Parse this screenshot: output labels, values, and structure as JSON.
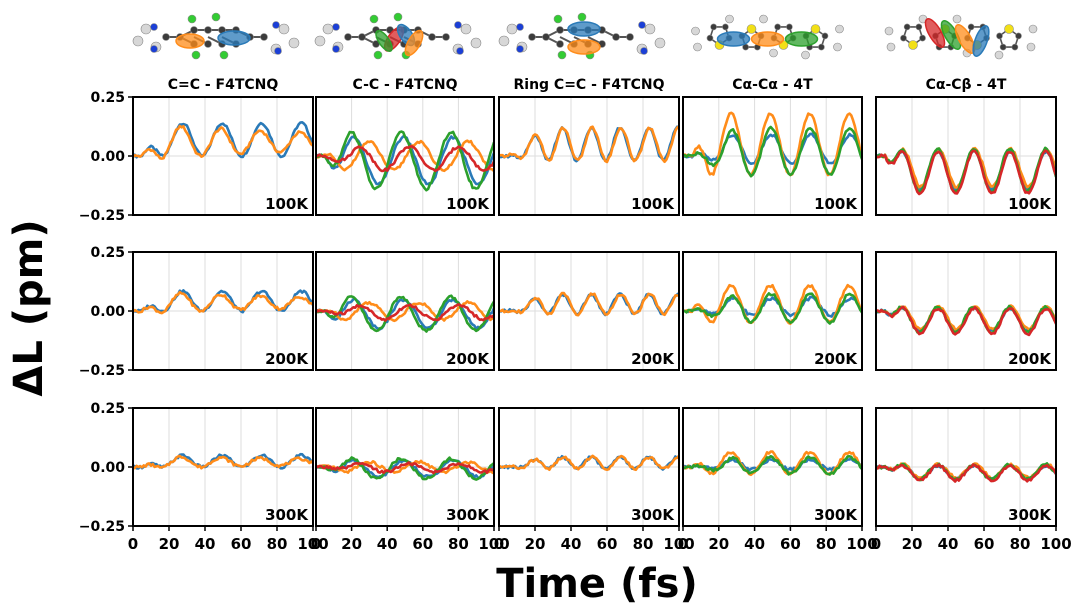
{
  "colors": {
    "blue": "#2a7ab8",
    "orange": "#ff8c1a",
    "green": "#2ca02c",
    "red": "#d62728",
    "atom_carbon": "#3c3c3c",
    "atom_hydrogen": "#d7d7d7",
    "atom_nitrogen": "#1b3fd6",
    "atom_fluorine": "#33cc33",
    "atom_sulfur": "#f2e017"
  },
  "figure": {
    "ylabel": "ΔL (pm)",
    "xlabel": "Time (fs)"
  },
  "chart_data": {
    "type": "line",
    "layout": "grid 3 rows x 5 columns, shared axes",
    "columns": [
      {
        "title": "C=C - F4TCNQ",
        "molecule": "F4TCNQ",
        "series_colors": [
          "blue",
          "orange"
        ]
      },
      {
        "title": "C-C - F4TCNQ",
        "molecule": "F4TCNQ",
        "series_colors": [
          "blue",
          "orange",
          "green",
          "red"
        ]
      },
      {
        "title": "Ring C=C - F4TCNQ",
        "molecule": "F4TCNQ",
        "series_colors": [
          "blue",
          "orange"
        ]
      },
      {
        "title": "Cα-Cα - 4T",
        "molecule": "4T",
        "series_colors": [
          "blue",
          "orange",
          "green"
        ]
      },
      {
        "title": "Cα-Cβ - 4T",
        "molecule": "4T",
        "series_colors": [
          "blue",
          "orange",
          "green",
          "red"
        ]
      }
    ],
    "rows": [
      {
        "label": "100K",
        "amplitude_scale": 1.0
      },
      {
        "label": "200K",
        "amplitude_scale": 0.6
      },
      {
        "label": "300K",
        "amplitude_scale": 0.35
      }
    ],
    "x_ticks": [
      "0",
      "20",
      "40",
      "60",
      "80",
      "100"
    ],
    "x_tick_values": [
      0,
      20,
      40,
      60,
      80,
      100
    ],
    "xlim": [
      0,
      100
    ],
    "y_ticks": [
      "−0.25",
      "0.00",
      "0.25"
    ],
    "y_tick_values": [
      -0.25,
      0.0,
      0.25
    ],
    "ylim": [
      -0.25,
      0.25
    ],
    "xlabel": "Time (fs)",
    "ylabel": "ΔL (pm)",
    "series_params_100K": [
      {
        "col": 0,
        "color": "blue",
        "offset": 0.07,
        "amp": 0.07,
        "period": 22,
        "phase": 0.0,
        "rise": 12,
        "damp": 0.0
      },
      {
        "col": 0,
        "color": "orange",
        "offset": 0.06,
        "amp": 0.08,
        "period": 22,
        "phase": 0.2,
        "rise": 12,
        "damp": 0.015
      },
      {
        "col": 1,
        "color": "blue",
        "offset": -0.02,
        "amp": 0.1,
        "period": 28,
        "phase": 3.1,
        "rise": 10,
        "damp": 0.0
      },
      {
        "col": 1,
        "color": "orange",
        "offset": 0.0,
        "amp": 0.06,
        "period": 28,
        "phase": 1.2,
        "rise": 10,
        "damp": 0.0
      },
      {
        "col": 1,
        "color": "green",
        "offset": -0.02,
        "amp": 0.12,
        "period": 28,
        "phase": 3.4,
        "rise": 12,
        "damp": 0.0
      },
      {
        "col": 1,
        "color": "red",
        "offset": -0.01,
        "amp": 0.05,
        "period": 28,
        "phase": 2.4,
        "rise": 20,
        "damp": 0.0
      },
      {
        "col": 2,
        "color": "blue",
        "offset": 0.05,
        "amp": 0.07,
        "period": 16,
        "phase": 0.3,
        "rise": 20,
        "damp": 0.0
      },
      {
        "col": 2,
        "color": "orange",
        "offset": 0.05,
        "amp": 0.07,
        "period": 16,
        "phase": 0.1,
        "rise": 20,
        "damp": 0.0
      },
      {
        "col": 3,
        "color": "blue",
        "offset": 0.03,
        "amp": 0.06,
        "period": 22,
        "phase": 0.0,
        "rise": 20,
        "damp": 0.0
      },
      {
        "col": 3,
        "color": "orange",
        "offset": 0.05,
        "amp": 0.13,
        "period": 22,
        "phase": 0.2,
        "rise": 10,
        "damp": 0.0
      },
      {
        "col": 3,
        "color": "green",
        "offset": 0.02,
        "amp": 0.1,
        "period": 22,
        "phase": 0.1,
        "rise": 25,
        "damp": 0.0
      },
      {
        "col": 4,
        "color": "blue",
        "offset": -0.06,
        "amp": 0.08,
        "period": 20,
        "phase": 3.3,
        "rise": 10,
        "damp": 0.0
      },
      {
        "col": 4,
        "color": "orange",
        "offset": -0.05,
        "amp": 0.08,
        "period": 20,
        "phase": 3.2,
        "rise": 10,
        "damp": 0.0
      },
      {
        "col": 4,
        "color": "green",
        "offset": -0.06,
        "amp": 0.09,
        "period": 20,
        "phase": 3.4,
        "rise": 10,
        "damp": 0.0
      },
      {
        "col": 4,
        "color": "red",
        "offset": -0.07,
        "amp": 0.09,
        "period": 20,
        "phase": 3.3,
        "rise": 10,
        "damp": 0.0
      }
    ]
  }
}
